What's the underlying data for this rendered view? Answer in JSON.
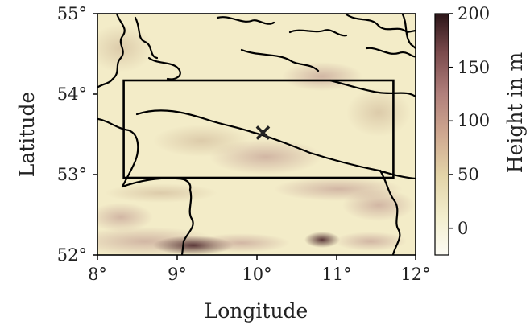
{
  "map": {
    "xlabel": "Longitude",
    "ylabel": "Latitude",
    "x_ticks": [
      "8°",
      "9°",
      "10°",
      "11°",
      "12°"
    ],
    "y_ticks": [
      "55°",
      "54°",
      "53°",
      "52°"
    ],
    "xlim": [
      8,
      12
    ],
    "ylim": [
      52,
      55
    ],
    "box": {
      "lon_min": 8.33,
      "lon_max": 11.72,
      "lat_min": 52.96,
      "lat_max": 54.17
    },
    "marker": {
      "lon": 10.08,
      "lat": 53.52,
      "symbol": "×",
      "color": "#e8322c"
    },
    "land_color": "#f3ecc8",
    "coast_color": "#000000"
  },
  "colorbar": {
    "label": "Height in m",
    "ticks": [
      "200",
      "150",
      "100",
      "50",
      "0"
    ],
    "range": [
      -25,
      200
    ],
    "colors": [
      "#fcfbf4",
      "#f1edbf",
      "#dcc69b",
      "#c99a8a",
      "#a36e6e",
      "#6b3b3f",
      "#2b1518"
    ]
  }
}
